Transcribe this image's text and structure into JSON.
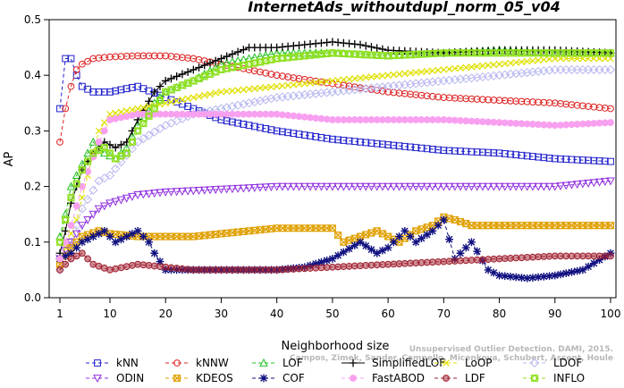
{
  "chart_data": {
    "type": "line",
    "title": "InternetAds_withoutdupl_norm_05_v04",
    "xlabel": "Neighborhood size",
    "ylabel": "AP",
    "xlim": [
      1,
      100
    ],
    "ylim": [
      0,
      0.5
    ],
    "xticks": [
      1,
      10,
      20,
      30,
      40,
      50,
      60,
      70,
      80,
      90,
      100
    ],
    "yticks": [
      0.0,
      0.1,
      0.2,
      0.3,
      0.4,
      0.5
    ],
    "grid": false,
    "legend_position": "bottom",
    "watermark": [
      "Unsupervised Outlier Detection. DAMI, 2015.",
      "Campos, Zimek, Sander, Campello, Micenkova, Schubert, Assent, Houle"
    ],
    "series": [
      {
        "name": "kNN",
        "color": "#2020cc",
        "marker": "square",
        "dash": "4,3",
        "points": [
          [
            1,
            0.34
          ],
          [
            2,
            0.43
          ],
          [
            3,
            0.43
          ],
          [
            4,
            0.4
          ],
          [
            5,
            0.38
          ],
          [
            7,
            0.37
          ],
          [
            10,
            0.37
          ],
          [
            15,
            0.38
          ],
          [
            20,
            0.36
          ],
          [
            25,
            0.34
          ],
          [
            30,
            0.32
          ],
          [
            40,
            0.3
          ],
          [
            50,
            0.285
          ],
          [
            60,
            0.275
          ],
          [
            70,
            0.265
          ],
          [
            80,
            0.26
          ],
          [
            90,
            0.25
          ],
          [
            100,
            0.245
          ]
        ]
      },
      {
        "name": "kNNW",
        "color": "#dd2020",
        "marker": "circle",
        "dash": "4,3",
        "points": [
          [
            1,
            0.28
          ],
          [
            2,
            0.34
          ],
          [
            3,
            0.38
          ],
          [
            4,
            0.41
          ],
          [
            5,
            0.42
          ],
          [
            7,
            0.43
          ],
          [
            10,
            0.433
          ],
          [
            15,
            0.435
          ],
          [
            20,
            0.435
          ],
          [
            25,
            0.43
          ],
          [
            30,
            0.42
          ],
          [
            40,
            0.4
          ],
          [
            50,
            0.385
          ],
          [
            60,
            0.37
          ],
          [
            70,
            0.36
          ],
          [
            80,
            0.355
          ],
          [
            90,
            0.35
          ],
          [
            100,
            0.34
          ]
        ]
      },
      {
        "name": "LOF",
        "color": "#20c020",
        "marker": "triangle",
        "dash": "4,3",
        "points": [
          [
            1,
            0.11
          ],
          [
            2,
            0.15
          ],
          [
            3,
            0.2
          ],
          [
            5,
            0.24
          ],
          [
            7,
            0.28
          ],
          [
            9,
            0.26
          ],
          [
            11,
            0.25
          ],
          [
            13,
            0.27
          ],
          [
            15,
            0.31
          ],
          [
            18,
            0.35
          ],
          [
            20,
            0.37
          ],
          [
            25,
            0.39
          ],
          [
            30,
            0.42
          ],
          [
            35,
            0.43
          ],
          [
            40,
            0.44
          ],
          [
            50,
            0.44
          ],
          [
            60,
            0.435
          ],
          [
            70,
            0.44
          ],
          [
            80,
            0.445
          ],
          [
            90,
            0.44
          ],
          [
            100,
            0.44
          ]
        ]
      },
      {
        "name": "SimplifiedLOF",
        "color": "#000000",
        "marker": "plus",
        "dash": "none",
        "points": [
          [
            1,
            0.08
          ],
          [
            2,
            0.12
          ],
          [
            3,
            0.17
          ],
          [
            5,
            0.23
          ],
          [
            7,
            0.26
          ],
          [
            9,
            0.28
          ],
          [
            11,
            0.27
          ],
          [
            13,
            0.28
          ],
          [
            15,
            0.32
          ],
          [
            18,
            0.37
          ],
          [
            20,
            0.39
          ],
          [
            25,
            0.41
          ],
          [
            30,
            0.43
          ],
          [
            35,
            0.45
          ],
          [
            40,
            0.45
          ],
          [
            45,
            0.455
          ],
          [
            50,
            0.46
          ],
          [
            55,
            0.455
          ],
          [
            60,
            0.445
          ],
          [
            70,
            0.44
          ],
          [
            80,
            0.445
          ],
          [
            90,
            0.445
          ],
          [
            100,
            0.44
          ]
        ]
      },
      {
        "name": "LoOP",
        "color": "#e0e000",
        "marker": "x",
        "dash": "4,3",
        "points": [
          [
            1,
            0.06
          ],
          [
            2,
            0.09
          ],
          [
            4,
            0.14
          ],
          [
            6,
            0.22
          ],
          [
            8,
            0.3
          ],
          [
            10,
            0.33
          ],
          [
            15,
            0.34
          ],
          [
            20,
            0.35
          ],
          [
            25,
            0.36
          ],
          [
            30,
            0.37
          ],
          [
            40,
            0.38
          ],
          [
            50,
            0.39
          ],
          [
            60,
            0.4
          ],
          [
            70,
            0.41
          ],
          [
            80,
            0.42
          ],
          [
            90,
            0.43
          ],
          [
            100,
            0.43
          ]
        ]
      },
      {
        "name": "LDOF",
        "color": "#b8b8f0",
        "marker": "diamond",
        "dash": "4,3",
        "points": [
          [
            1,
            0.05
          ],
          [
            3,
            0.1
          ],
          [
            5,
            0.16
          ],
          [
            8,
            0.21
          ],
          [
            10,
            0.22
          ],
          [
            15,
            0.28
          ],
          [
            20,
            0.31
          ],
          [
            25,
            0.33
          ],
          [
            30,
            0.34
          ],
          [
            40,
            0.36
          ],
          [
            50,
            0.37
          ],
          [
            60,
            0.38
          ],
          [
            70,
            0.39
          ],
          [
            80,
            0.4
          ],
          [
            90,
            0.41
          ],
          [
            100,
            0.41
          ]
        ]
      },
      {
        "name": "ODIN",
        "color": "#9030e0",
        "marker": "triangle-down",
        "dash": "4,3",
        "points": [
          [
            1,
            0.07
          ],
          [
            3,
            0.1
          ],
          [
            5,
            0.13
          ],
          [
            8,
            0.16
          ],
          [
            10,
            0.17
          ],
          [
            15,
            0.185
          ],
          [
            20,
            0.19
          ],
          [
            30,
            0.195
          ],
          [
            40,
            0.2
          ],
          [
            50,
            0.2
          ],
          [
            60,
            0.2
          ],
          [
            70,
            0.2
          ],
          [
            80,
            0.2
          ],
          [
            90,
            0.2
          ],
          [
            100,
            0.21
          ]
        ]
      },
      {
        "name": "KDEOS",
        "color": "#e0a000",
        "marker": "square-x",
        "dash": "4,3",
        "points": [
          [
            1,
            0.06
          ],
          [
            3,
            0.09
          ],
          [
            5,
            0.11
          ],
          [
            8,
            0.12
          ],
          [
            10,
            0.115
          ],
          [
            15,
            0.11
          ],
          [
            20,
            0.11
          ],
          [
            25,
            0.11
          ],
          [
            30,
            0.115
          ],
          [
            35,
            0.12
          ],
          [
            40,
            0.125
          ],
          [
            50,
            0.125
          ],
          [
            52,
            0.1
          ],
          [
            55,
            0.11
          ],
          [
            58,
            0.12
          ],
          [
            62,
            0.1
          ],
          [
            65,
            0.12
          ],
          [
            68,
            0.13
          ],
          [
            70,
            0.145
          ],
          [
            72,
            0.14
          ],
          [
            75,
            0.13
          ],
          [
            80,
            0.13
          ],
          [
            90,
            0.13
          ],
          [
            100,
            0.13
          ]
        ]
      },
      {
        "name": "COF",
        "color": "#101080",
        "marker": "asterisk",
        "dash": "4,3",
        "points": [
          [
            1,
            0.07
          ],
          [
            3,
            0.08
          ],
          [
            5,
            0.1
          ],
          [
            7,
            0.11
          ],
          [
            9,
            0.12
          ],
          [
            11,
            0.1
          ],
          [
            13,
            0.11
          ],
          [
            15,
            0.12
          ],
          [
            17,
            0.1
          ],
          [
            18,
            0.08
          ],
          [
            20,
            0.05
          ],
          [
            25,
            0.05
          ],
          [
            30,
            0.05
          ],
          [
            35,
            0.05
          ],
          [
            40,
            0.05
          ],
          [
            45,
            0.055
          ],
          [
            50,
            0.07
          ],
          [
            55,
            0.1
          ],
          [
            58,
            0.08
          ],
          [
            60,
            0.09
          ],
          [
            63,
            0.12
          ],
          [
            65,
            0.1
          ],
          [
            68,
            0.12
          ],
          [
            70,
            0.14
          ],
          [
            72,
            0.07
          ],
          [
            75,
            0.1
          ],
          [
            78,
            0.05
          ],
          [
            80,
            0.04
          ],
          [
            85,
            0.035
          ],
          [
            90,
            0.04
          ],
          [
            95,
            0.05
          ],
          [
            100,
            0.08
          ]
        ]
      },
      {
        "name": "FastABOD",
        "color": "#f8a0f0",
        "marker": "circle-filled",
        "dash": "4,3",
        "points": [
          [
            1,
            0.07
          ],
          [
            3,
            0.13
          ],
          [
            5,
            0.2
          ],
          [
            8,
            0.28
          ],
          [
            10,
            0.32
          ],
          [
            15,
            0.33
          ],
          [
            20,
            0.33
          ],
          [
            25,
            0.33
          ],
          [
            30,
            0.33
          ],
          [
            40,
            0.33
          ],
          [
            50,
            0.32
          ],
          [
            60,
            0.32
          ],
          [
            70,
            0.32
          ],
          [
            80,
            0.315
          ],
          [
            90,
            0.31
          ],
          [
            100,
            0.315
          ]
        ]
      },
      {
        "name": "LDF",
        "color": "#a02030",
        "marker": "circle-dot",
        "dash": "4,3",
        "points": [
          [
            1,
            0.05
          ],
          [
            2,
            0.06
          ],
          [
            3,
            0.07
          ],
          [
            5,
            0.08
          ],
          [
            7,
            0.06
          ],
          [
            10,
            0.05
          ],
          [
            15,
            0.06
          ],
          [
            20,
            0.055
          ],
          [
            25,
            0.05
          ],
          [
            30,
            0.05
          ],
          [
            40,
            0.05
          ],
          [
            50,
            0.055
          ],
          [
            60,
            0.06
          ],
          [
            70,
            0.065
          ],
          [
            80,
            0.07
          ],
          [
            90,
            0.075
          ],
          [
            100,
            0.075
          ]
        ]
      },
      {
        "name": "INFLO",
        "color": "#90e020",
        "marker": "square-diamond",
        "dash": "4,3",
        "points": [
          [
            1,
            0.1
          ],
          [
            2,
            0.14
          ],
          [
            3,
            0.18
          ],
          [
            5,
            0.23
          ],
          [
            7,
            0.26
          ],
          [
            9,
            0.27
          ],
          [
            11,
            0.25
          ],
          [
            13,
            0.26
          ],
          [
            15,
            0.3
          ],
          [
            18,
            0.34
          ],
          [
            20,
            0.37
          ],
          [
            25,
            0.39
          ],
          [
            30,
            0.41
          ],
          [
            35,
            0.42
          ],
          [
            40,
            0.43
          ],
          [
            50,
            0.44
          ],
          [
            60,
            0.435
          ],
          [
            70,
            0.44
          ],
          [
            80,
            0.44
          ],
          [
            90,
            0.44
          ],
          [
            100,
            0.44
          ]
        ]
      }
    ]
  }
}
